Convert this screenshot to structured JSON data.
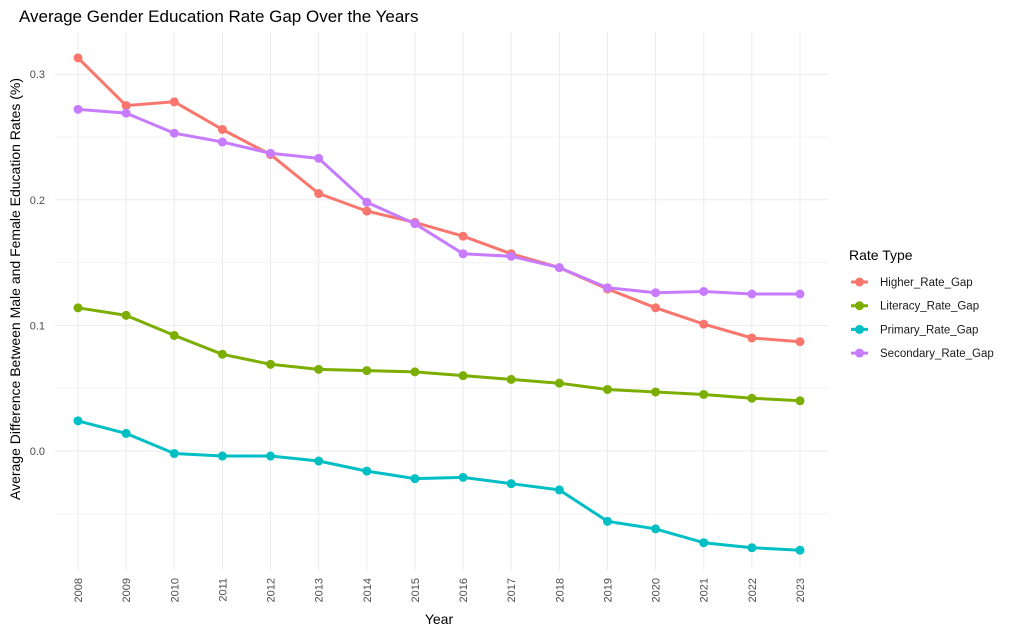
{
  "chart_data": {
    "type": "line",
    "title": "Average Gender Education Rate Gap Over the Years",
    "xlabel": "Year",
    "ylabel": "Average Difference Between Male and Female Education Rates (%)",
    "x": [
      2008,
      2009,
      2010,
      2011,
      2012,
      2013,
      2014,
      2015,
      2016,
      2017,
      2018,
      2019,
      2020,
      2021,
      2022,
      2023
    ],
    "xtick_labels": [
      "2008",
      "2009",
      "2010",
      "2011",
      "2012",
      "2013",
      "2014",
      "2015",
      "2016",
      "2017",
      "2018",
      "2019",
      "2020",
      "2021",
      "2022",
      "2023"
    ],
    "ylim": [
      -0.095,
      0.33
    ],
    "yticks": [
      0.0,
      0.1,
      0.2,
      0.3
    ],
    "ytick_labels": [
      "0.0",
      "0.1",
      "0.2",
      "0.3"
    ],
    "grid": true,
    "legend": {
      "title": "Rate Type",
      "position": "right"
    },
    "series": [
      {
        "name": "Higher_Rate_Gap",
        "color": "#F8766D",
        "values": [
          0.313,
          0.275,
          0.278,
          0.256,
          0.236,
          0.205,
          0.191,
          0.182,
          0.171,
          0.157,
          0.146,
          0.129,
          0.114,
          0.101,
          0.09,
          0.087
        ]
      },
      {
        "name": "Literacy_Rate_Gap",
        "color": "#7CAE00",
        "values": [
          0.114,
          0.108,
          0.092,
          0.077,
          0.069,
          0.065,
          0.064,
          0.063,
          0.06,
          0.057,
          0.054,
          0.049,
          0.047,
          0.045,
          0.042,
          0.04
        ]
      },
      {
        "name": "Primary_Rate_Gap",
        "color": "#00BFC4",
        "values": [
          0.024,
          0.014,
          -0.002,
          -0.004,
          -0.004,
          -0.008,
          -0.016,
          -0.022,
          -0.021,
          -0.026,
          -0.031,
          -0.056,
          -0.062,
          -0.073,
          -0.077,
          -0.079
        ]
      },
      {
        "name": "Secondary_Rate_Gap",
        "color": "#C77CFF",
        "values": [
          0.272,
          0.269,
          0.253,
          0.246,
          0.237,
          0.233,
          0.198,
          0.181,
          0.157,
          0.155,
          0.146,
          0.13,
          0.126,
          0.127,
          0.125,
          0.125
        ]
      }
    ]
  }
}
